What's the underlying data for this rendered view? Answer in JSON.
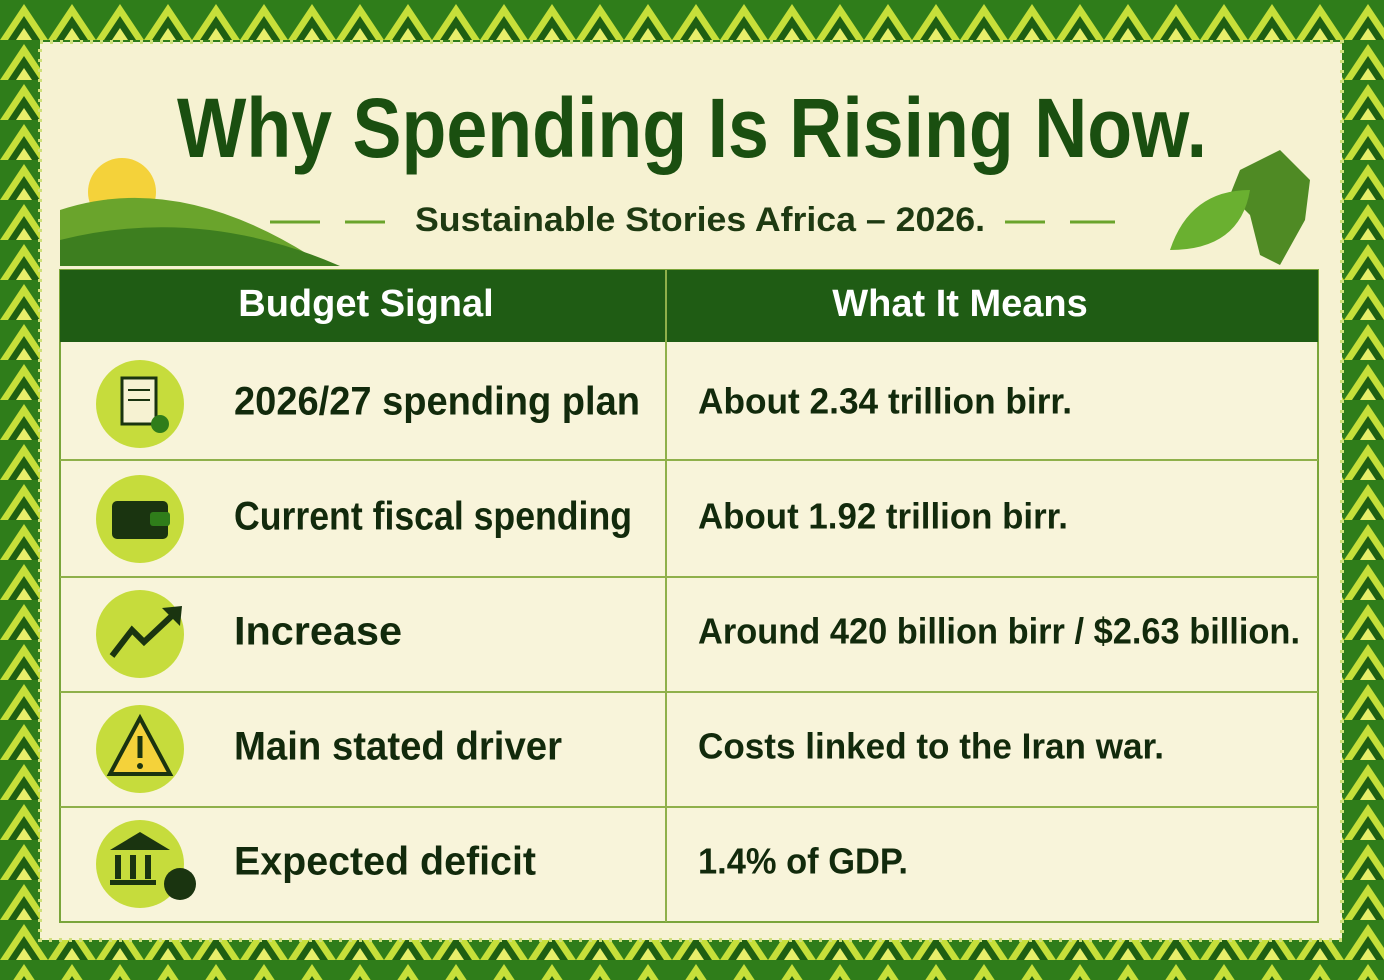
{
  "header": {
    "title": "Why Spending Is Rising Now.",
    "subtitle": "Sustainable Stories Africa – 2026."
  },
  "table": {
    "columns": [
      "Budget Signal",
      "What It Means"
    ],
    "rows": [
      [
        "2026/27 spending plan",
        "About 2.34 trillion birr."
      ],
      [
        "Current fiscal spending",
        "About 1.92 trillion birr."
      ],
      [
        "Increase",
        "Around 420 billion birr / $2.63 billion."
      ],
      [
        "Main stated driver",
        "Costs linked to the Iran war."
      ],
      [
        "Expected deficit",
        "1.4% of GDP."
      ]
    ]
  }
}
